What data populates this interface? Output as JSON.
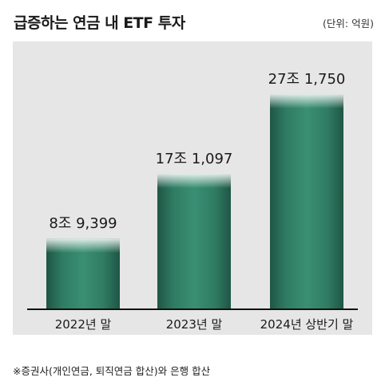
{
  "title": "급증하는 연금 내 ETF 투자",
  "unit": "(단위: 억원)",
  "footnote": "※증권사(개인연금, 퇴직연금 합산)와 은행 합산",
  "colors": {
    "bar": "#2e7a62",
    "bar_dark": "#1b4a3b",
    "panel": "#e6e6e6"
  },
  "chart_data": {
    "type": "bar",
    "categories": [
      "2022년 말",
      "2023년 말",
      "2024년 상반기 말"
    ],
    "values": [
      89399,
      171097,
      271750
    ],
    "data_labels": [
      "8조 9,399",
      "17조 1,097",
      "27조 1,750"
    ],
    "title": "급증하는 연금 내 ETF 투자",
    "xlabel": "",
    "ylabel": "",
    "unit": "억원",
    "ylim": [
      0,
      300000
    ],
    "grid": false
  }
}
